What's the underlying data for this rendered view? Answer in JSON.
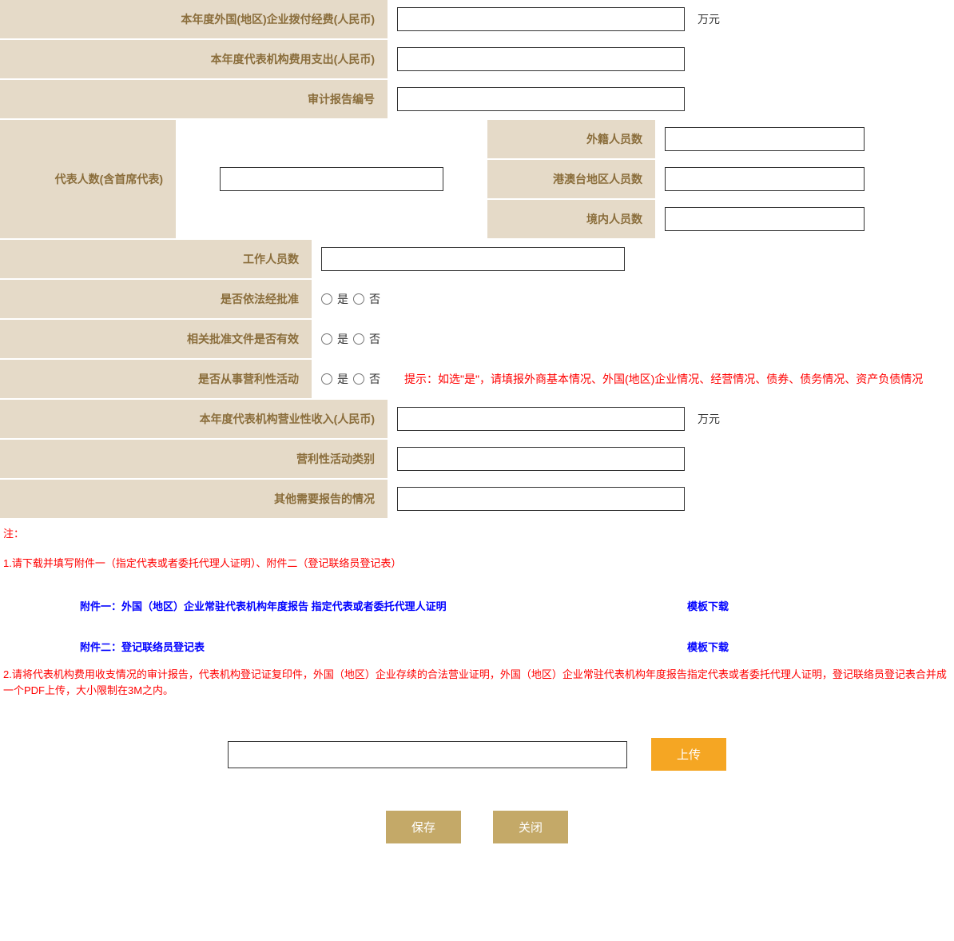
{
  "colors": {
    "label_bg": "#e5dac8",
    "label_text": "#8a6d3b",
    "hint_text": "#ff0000",
    "link_text": "#0000ff",
    "btn_orange": "#f5a623",
    "btn_tan": "#c4a968",
    "border": "#333333",
    "background": "#ffffff"
  },
  "fields": {
    "foreign_fund": {
      "label": "本年度外国(地区)企业拨付经费(人民币)",
      "value": "",
      "unit": "万元"
    },
    "expense": {
      "label": "本年度代表机构费用支出(人民币)",
      "value": ""
    },
    "audit_no": {
      "label": "审计报告编号",
      "value": ""
    },
    "rep_count": {
      "label": "代表人数(含首席代表)",
      "value": ""
    },
    "foreign_staff": {
      "label": "外籍人员数",
      "value": ""
    },
    "hkmt_staff": {
      "label": "港澳台地区人员数",
      "value": ""
    },
    "domestic_staff": {
      "label": "境内人员数",
      "value": ""
    },
    "work_staff": {
      "label": "工作人员数",
      "value": ""
    },
    "law_approved": {
      "label": "是否依法经批准",
      "yes": "是",
      "no": "否"
    },
    "doc_valid": {
      "label": "相关批准文件是否有效",
      "yes": "是",
      "no": "否"
    },
    "profit_activity": {
      "label": "是否从事营利性活动",
      "yes": "是",
      "no": "否",
      "hint": "提示：如选\"是\"，请填报外商基本情况、外国(地区)企业情况、经营情况、债券、债务情况、资产负债情况"
    },
    "profit_income": {
      "label": "本年度代表机构营业性收入(人民币)",
      "value": "",
      "unit": "万元"
    },
    "profit_type": {
      "label": "营利性活动类别",
      "value": ""
    },
    "other_report": {
      "label": "其他需要报告的情况",
      "value": ""
    }
  },
  "notes": {
    "note_header": "注：",
    "note1": "1.请下载并填写附件一（指定代表或者委托代理人证明）、附件二（登记联络员登记表）",
    "attachment1": {
      "title": "附件一：外国（地区）企业常驻代表机构年度报告 指定代表或者委托代理人证明",
      "download": "模板下载"
    },
    "attachment2": {
      "title": "附件二：登记联络员登记表",
      "download": "模板下载"
    },
    "note2": "2.请将代表机构费用收支情况的审计报告，代表机构登记证复印件，外国（地区）企业存续的合法营业证明，外国（地区）企业常驻代表机构年度报告指定代表或者委托代理人证明，登记联络员登记表合并成一个PDF上传，大小限制在3M之内。"
  },
  "upload": {
    "value": "",
    "button": "上传"
  },
  "buttons": {
    "save": "保存",
    "close": "关闭"
  }
}
